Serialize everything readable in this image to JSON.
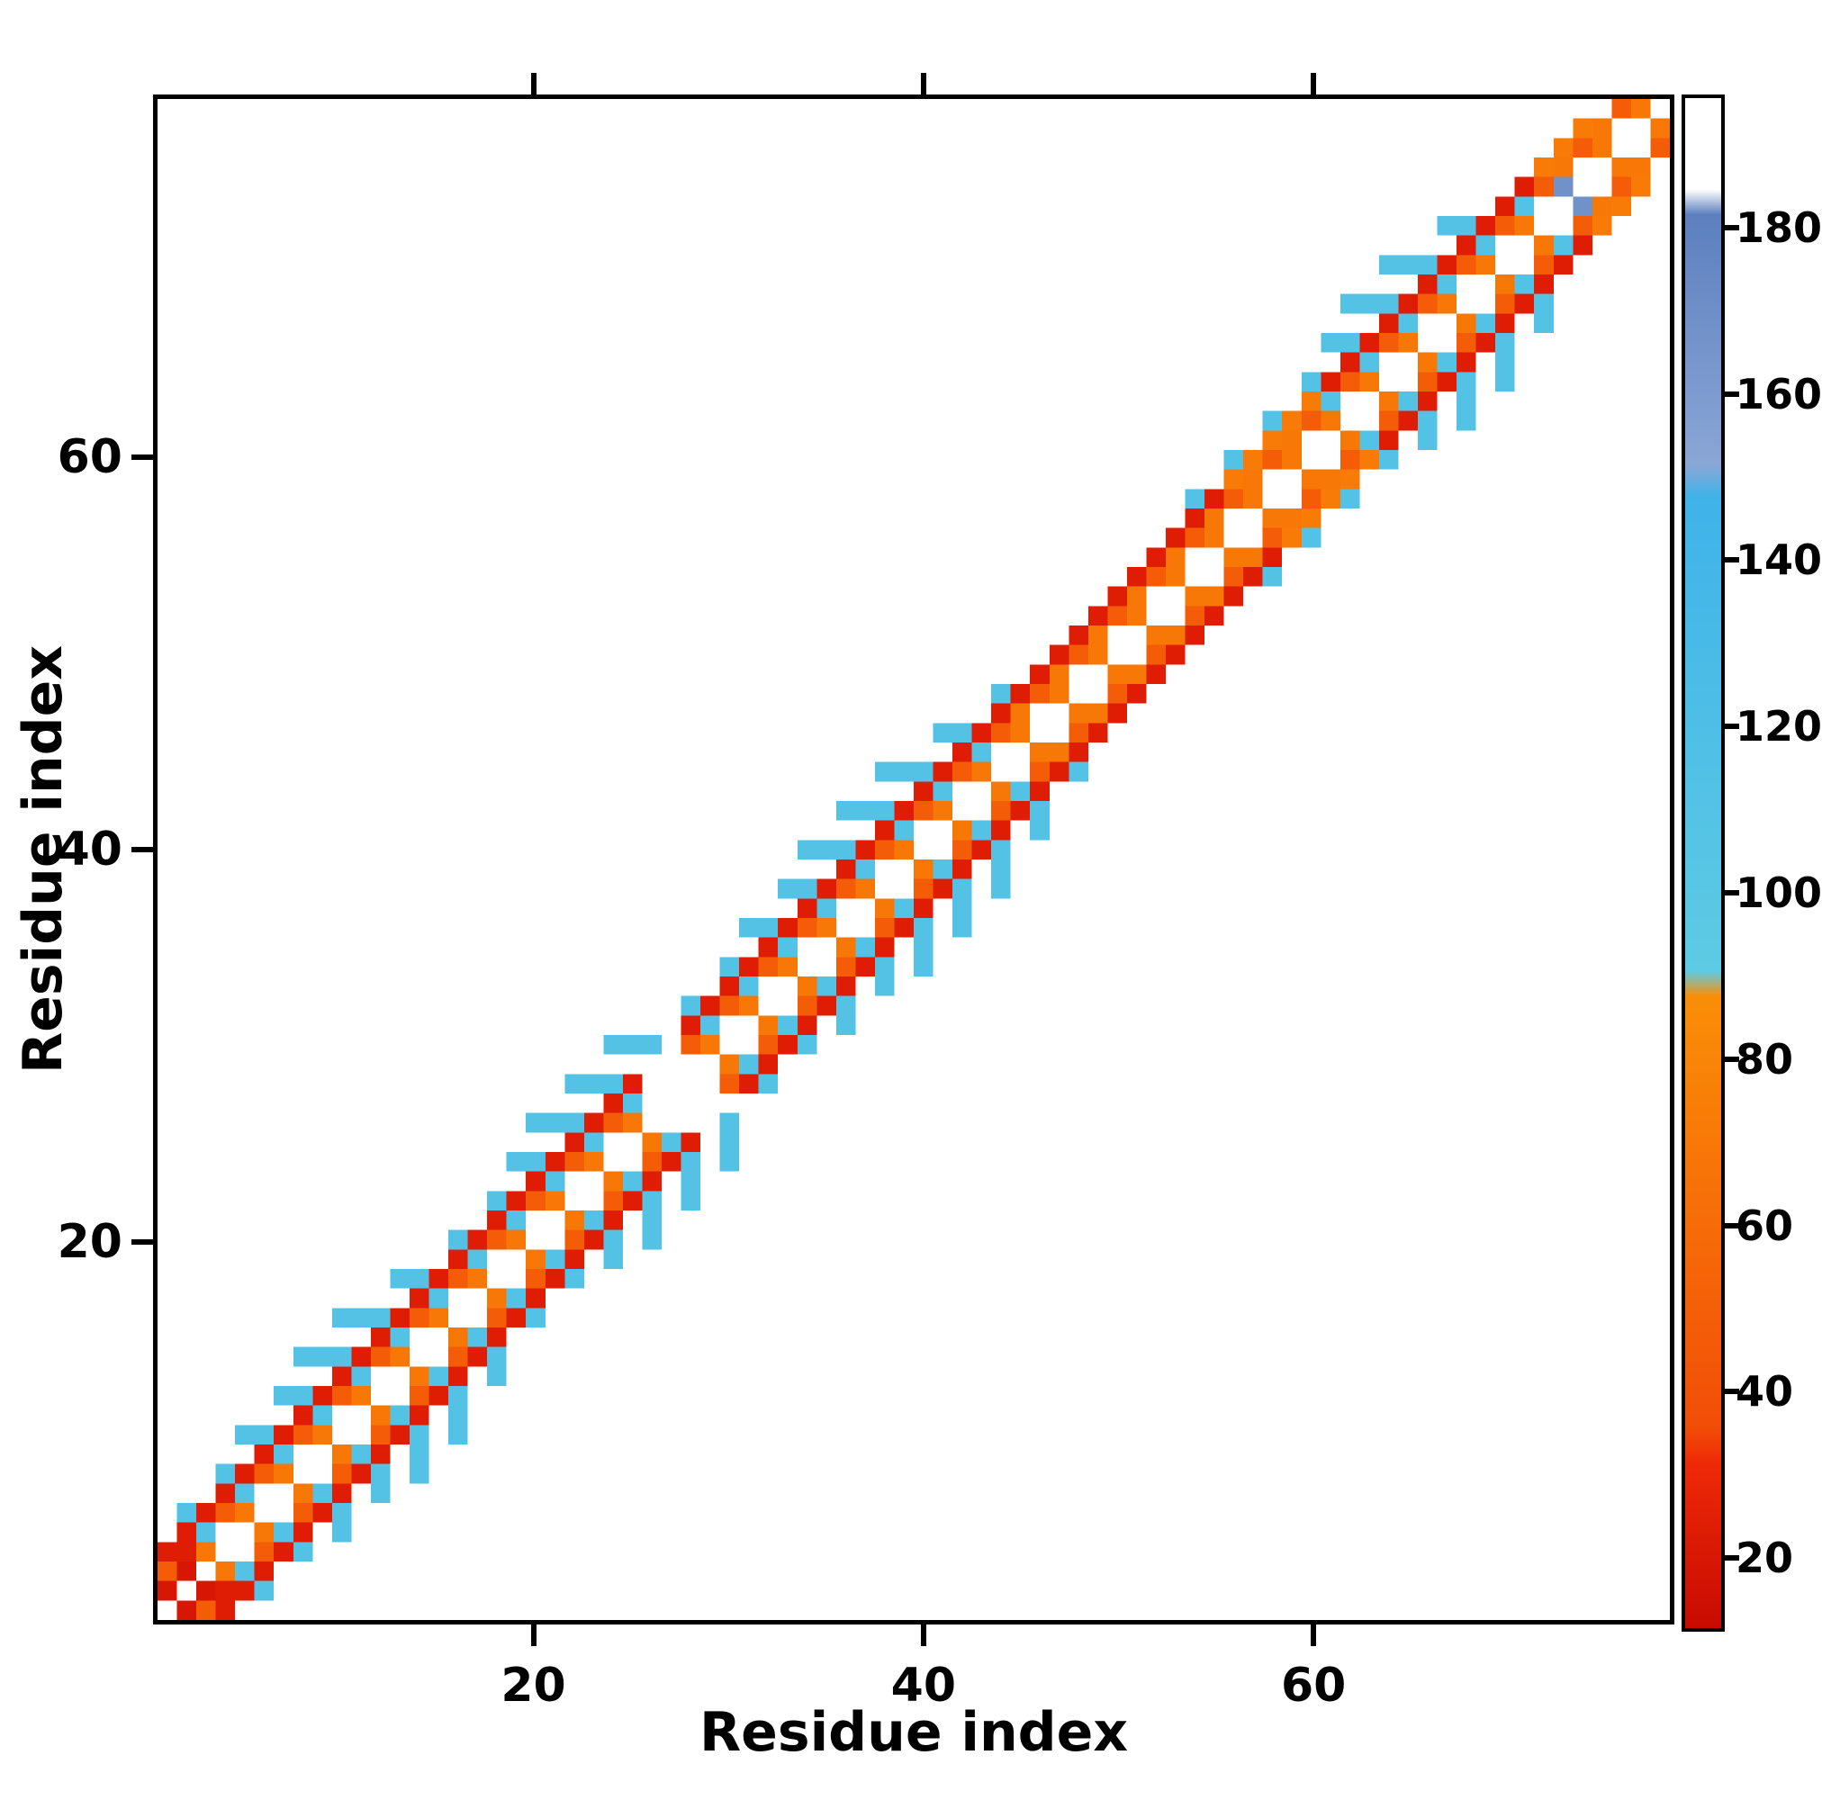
{
  "figure": {
    "background": "#ffffff",
    "frame_color": "#000000"
  },
  "chart_data": {
    "type": "heatmap",
    "title": "",
    "xlabel": "Residue index",
    "ylabel": "Residue index",
    "n_residues": 78,
    "axis_range": [
      0.5,
      78.5
    ],
    "xticks": [
      20,
      40,
      60
    ],
    "yticks": [
      20,
      40,
      60
    ],
    "grid": false,
    "legend": "none",
    "colorbar": {
      "position": "right",
      "ticks": [
        20,
        40,
        60,
        80,
        100,
        120,
        140,
        160,
        180
      ],
      "vmin": 12,
      "vmax": 196,
      "stops": [
        [
          12,
          "#c80a02"
        ],
        [
          32,
          "#ee2a07"
        ],
        [
          36,
          "#f24d08"
        ],
        [
          88,
          "#fa8e07"
        ],
        [
          91,
          "#5ecbe4"
        ],
        [
          148,
          "#3fb3e8"
        ],
        [
          152,
          "#8aa6d6"
        ],
        [
          182,
          "#5c7fbe"
        ],
        [
          185,
          "#ffffff"
        ],
        [
          196,
          "#ffffff"
        ]
      ]
    },
    "matrix": {
      "n": 78,
      "symmetric": true,
      "diagonal_value": null,
      "description": "Banded residue-residue contact map along the main diagonal; values encoded per diagonal offset with parity checkering, plus local exceptions read from the image.",
      "bands": [
        {
          "offset": 1,
          "mod": 2,
          "rem": 1,
          "value": 70
        },
        {
          "offset": 2,
          "mod": 2,
          "rem": 0,
          "value": 48
        },
        {
          "offset": 2,
          "mod": 2,
          "rem": 1,
          "value": 112,
          "ranges": [
            [
              1,
              44
            ],
            [
              61,
              72
            ]
          ]
        },
        {
          "offset": 2,
          "mod": 2,
          "rem": 1,
          "value": 70,
          "ranges": [
            [
              45,
              60
            ],
            [
              73,
              77
            ]
          ]
        },
        {
          "offset": 3,
          "mod": 1,
          "rem": 0,
          "value": 24,
          "ranges": [
            [
              1,
              26
            ],
            [
              28,
              55
            ],
            [
              61,
              71
            ]
          ]
        },
        {
          "offset": 3,
          "mod": 1,
          "rem": 0,
          "value": 72,
          "ranges": [
            [
              56,
              60
            ],
            [
              72,
              74
            ]
          ]
        },
        {
          "offset": 4,
          "mod": 2,
          "rem": 0,
          "value": 112,
          "ranges": [
            [
              1,
              45
            ],
            [
              53,
              69
            ]
          ]
        },
        {
          "offset": 5,
          "mod": 2,
          "rem": 1,
          "value": 112,
          "ranges": [
            [
              5,
              13
            ],
            [
              18,
              26
            ],
            [
              30,
              42
            ],
            [
              60,
              67
            ]
          ]
        },
        {
          "offset": 6,
          "mod": 2,
          "rem": 0,
          "value": 112,
          "ranges": [
            [
              8,
              11
            ],
            [
              20,
              24
            ],
            [
              33,
              39
            ],
            [
              62,
              65
            ]
          ]
        }
      ],
      "overrides": [
        [
          1,
          2,
          20
        ],
        [
          2,
          3,
          20
        ],
        [
          1,
          3,
          48
        ],
        [
          2,
          4,
          24
        ],
        [
          73,
          74,
          168
        ]
      ],
      "deletes": [
        [
          27,
          28
        ],
        [
          26,
          28
        ],
        [
          27,
          29
        ],
        [
          26,
          29
        ],
        [
          27,
          30
        ]
      ]
    }
  }
}
